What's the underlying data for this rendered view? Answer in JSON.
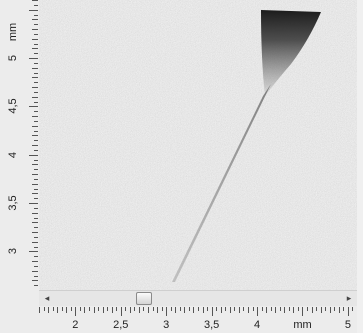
{
  "viewer": {
    "y_ruler": {
      "unit_label": "mm",
      "labels": [
        "5",
        "4,5",
        "4",
        "3,5",
        "3"
      ],
      "label_values": [
        5,
        4.5,
        4,
        3.5,
        3
      ],
      "range_top": 5.6,
      "range_bottom": 2.6
    },
    "x_ruler": {
      "unit_label": "mm",
      "labels": [
        "2",
        "2,5",
        "3",
        "3,5",
        "4",
        "5"
      ],
      "label_values": [
        2,
        2.5,
        3,
        3.5,
        4,
        5
      ],
      "range_left": 1.6,
      "range_right": 5.1
    },
    "scrollbar": {
      "left_arrow": "◂",
      "right_arrow": "▸",
      "position_fraction": 0.3
    },
    "image": {
      "background_color": "#ececec",
      "trace_color": "#1a1a1a"
    }
  }
}
